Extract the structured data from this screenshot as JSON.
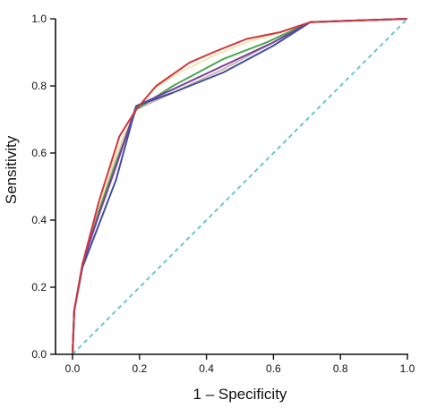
{
  "chart_data": {
    "type": "line",
    "title": "",
    "xlabel": "1 – Specificity",
    "ylabel": "Sensitivity",
    "xlim": [
      0,
      1
    ],
    "ylim": [
      0,
      1
    ],
    "xticks": [
      "0.0",
      "0.2",
      "0.4",
      "0.6",
      "0.8",
      "1.0"
    ],
    "yticks": [
      "0.0",
      "0.2",
      "0.4",
      "0.6",
      "0.8",
      "1.0"
    ],
    "grid": false,
    "legend": "none",
    "series": [
      {
        "color": "#f2e6b4",
        "style": "solid",
        "x": [
          0.0,
          0.005,
          0.03,
          0.08,
          0.13,
          0.19,
          0.24,
          0.32,
          0.42,
          0.52,
          0.62,
          0.71,
          0.85,
          1.0
        ],
        "y": [
          0.0,
          0.13,
          0.27,
          0.44,
          0.6,
          0.73,
          0.79,
          0.84,
          0.89,
          0.93,
          0.96,
          0.99,
          0.995,
          1.0
        ]
      },
      {
        "color": "#c9b7b0",
        "style": "solid",
        "x": [
          0.0,
          0.005,
          0.03,
          0.08,
          0.13,
          0.19,
          0.3,
          0.45,
          0.6,
          0.71,
          0.85,
          1.0
        ],
        "y": [
          0.0,
          0.13,
          0.27,
          0.43,
          0.58,
          0.73,
          0.78,
          0.85,
          0.93,
          0.99,
          0.995,
          1.0
        ]
      },
      {
        "color": "#4aa84a",
        "style": "solid",
        "x": [
          0.0,
          0.005,
          0.03,
          0.08,
          0.13,
          0.19,
          0.3,
          0.45,
          0.58,
          0.71,
          0.85,
          1.0
        ],
        "y": [
          0.0,
          0.13,
          0.27,
          0.43,
          0.57,
          0.73,
          0.8,
          0.88,
          0.93,
          0.99,
          0.995,
          1.0
        ]
      },
      {
        "color": "#7b3f9a",
        "style": "solid",
        "x": [
          0.0,
          0.005,
          0.03,
          0.08,
          0.13,
          0.19,
          0.3,
          0.45,
          0.6,
          0.71,
          0.85,
          1.0
        ],
        "y": [
          0.0,
          0.13,
          0.27,
          0.42,
          0.56,
          0.74,
          0.79,
          0.86,
          0.93,
          0.99,
          0.995,
          1.0
        ]
      },
      {
        "color": "#3f4fa0",
        "style": "solid",
        "x": [
          0.0,
          0.005,
          0.03,
          0.08,
          0.13,
          0.19,
          0.3,
          0.45,
          0.6,
          0.71,
          0.85,
          1.0
        ],
        "y": [
          0.0,
          0.13,
          0.26,
          0.39,
          0.52,
          0.74,
          0.78,
          0.84,
          0.92,
          0.99,
          0.995,
          1.0
        ]
      },
      {
        "color": "#d0383f",
        "style": "solid",
        "x": [
          0.0,
          0.005,
          0.03,
          0.08,
          0.14,
          0.19,
          0.25,
          0.35,
          0.42,
          0.52,
          0.62,
          0.71,
          0.85,
          1.0
        ],
        "y": [
          0.0,
          0.13,
          0.27,
          0.46,
          0.65,
          0.73,
          0.8,
          0.87,
          0.9,
          0.94,
          0.96,
          0.99,
          0.995,
          1.0
        ]
      },
      {
        "color": "#5bc3c8",
        "style": "dashed",
        "x": [
          0,
          1
        ],
        "y": [
          0,
          1
        ]
      }
    ]
  }
}
